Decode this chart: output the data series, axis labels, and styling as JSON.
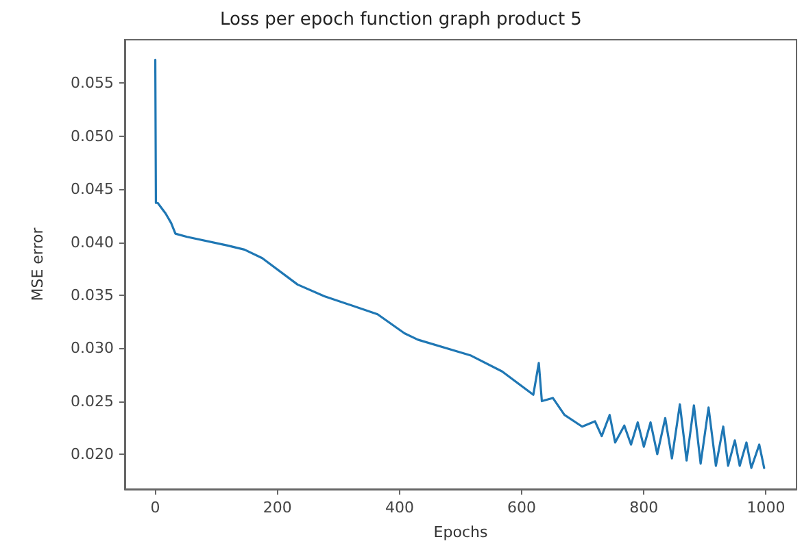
{
  "chart_data": {
    "type": "line",
    "title": "Loss per epoch function graph product 5",
    "xlabel": "Epochs",
    "ylabel": "MSE error",
    "xlim": [
      -50,
      1050
    ],
    "xticks": [
      0,
      200,
      400,
      600,
      800,
      1000
    ],
    "ylim": [
      0.0167,
      0.0591
    ],
    "yticks": [
      {
        "value": 0.02,
        "label": "0.020"
      },
      {
        "value": 0.025,
        "label": "0.025"
      },
      {
        "value": 0.03,
        "label": "0.030"
      },
      {
        "value": 0.035,
        "label": "0.035"
      },
      {
        "value": 0.04,
        "label": "0.040"
      },
      {
        "value": 0.045,
        "label": "0.045"
      },
      {
        "value": 0.05,
        "label": "0.050"
      },
      {
        "value": 0.055,
        "label": "0.055"
      }
    ],
    "grid": false,
    "marker": "none",
    "line_style": "solid",
    "series": [
      {
        "color": "#1f77b4",
        "x": [
          0,
          1,
          4,
          17,
          26,
          33,
          52,
          117,
          146,
          175,
          233,
          277,
          364,
          408,
          430,
          517,
          568,
          619,
          628,
          633,
          651,
          670,
          699,
          720,
          731,
          744,
          753,
          768,
          779,
          790,
          800,
          811,
          822,
          835,
          846,
          859,
          870,
          882,
          893,
          906,
          918,
          930,
          938,
          949,
          957,
          968,
          976,
          989,
          997
        ],
        "values": [
          0.0572,
          0.0437,
          0.0437,
          0.0427,
          0.0418,
          0.0408,
          0.0405,
          0.0397,
          0.0393,
          0.0385,
          0.036,
          0.0349,
          0.0332,
          0.0314,
          0.0308,
          0.0293,
          0.0278,
          0.0256,
          0.0286,
          0.025,
          0.0253,
          0.0237,
          0.0226,
          0.0231,
          0.0217,
          0.0237,
          0.0211,
          0.0227,
          0.0209,
          0.023,
          0.0207,
          0.023,
          0.02,
          0.0234,
          0.0196,
          0.0247,
          0.0194,
          0.0246,
          0.0191,
          0.0244,
          0.0189,
          0.0226,
          0.0189,
          0.0213,
          0.0189,
          0.0211,
          0.0187,
          0.0209,
          0.0187
        ]
      }
    ]
  }
}
